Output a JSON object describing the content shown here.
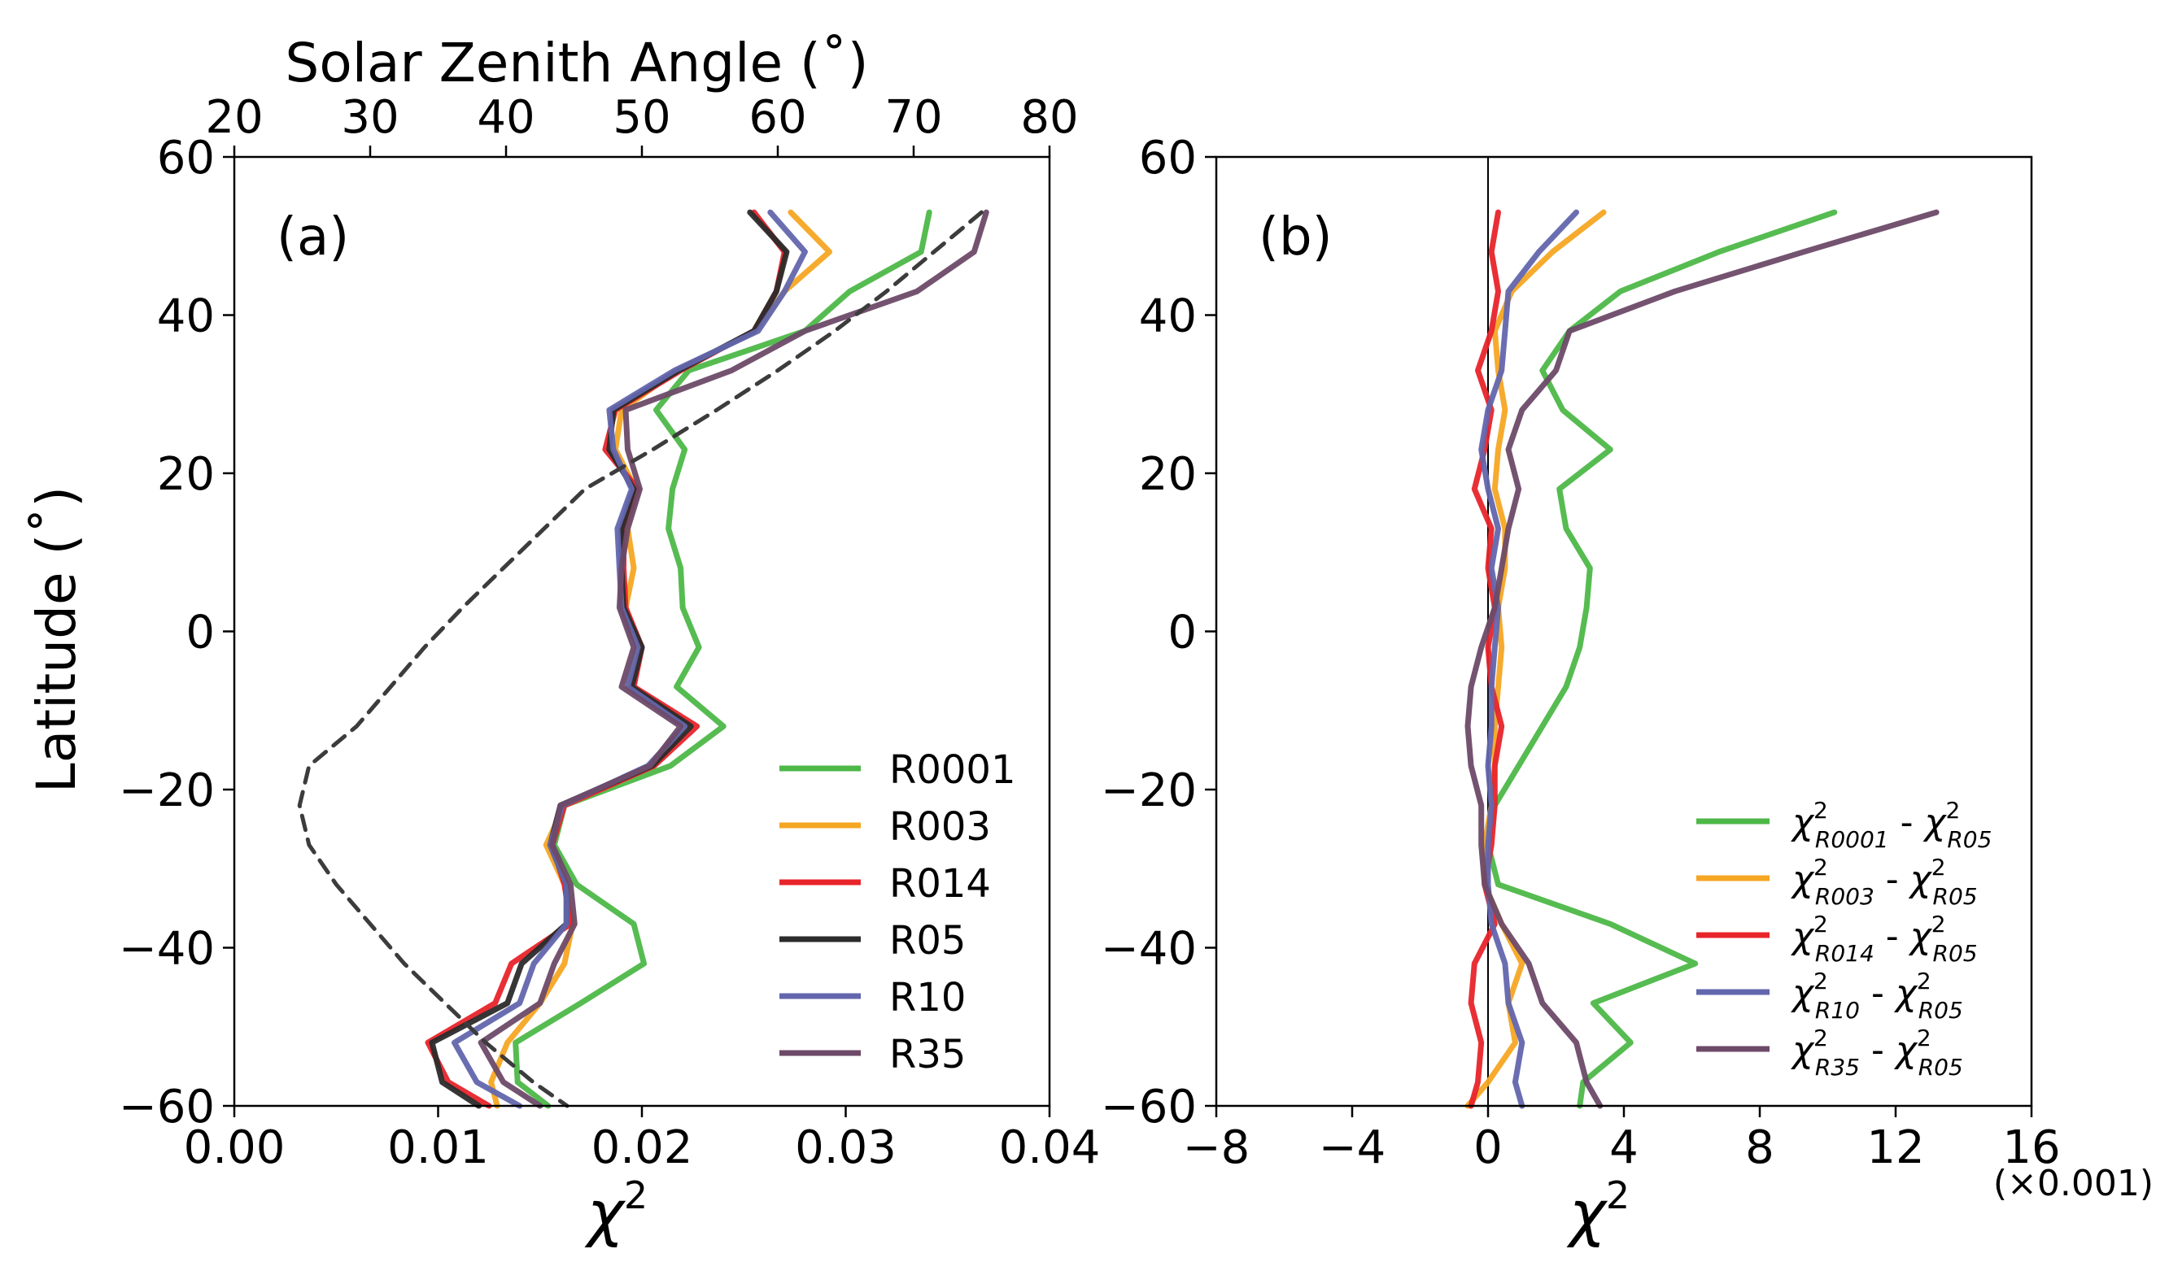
{
  "chart_data": [
    {
      "type": "line",
      "panel_label": "(a)",
      "xlabel": "χ",
      "xlabel_sup": "2",
      "ylabel": "Latitude (˚)",
      "xlim": [
        0.0,
        0.04
      ],
      "ylim": [
        -60,
        60
      ],
      "xticks": [
        0.0,
        0.01,
        0.02,
        0.03,
        0.04
      ],
      "xtick_labels": [
        "0.00",
        "0.01",
        "0.02",
        "0.03",
        "0.04"
      ],
      "yticks": [
        -60,
        -40,
        -20,
        0,
        20,
        40,
        60
      ],
      "ytick_labels": [
        "−60",
        "−40",
        "−20",
        "0",
        "20",
        "40",
        "60"
      ],
      "top_axis": {
        "label": "Solar Zenith Angle (˚)",
        "lim": [
          20,
          80
        ],
        "ticks": [
          20,
          30,
          40,
          50,
          60,
          70,
          80
        ],
        "tick_labels": [
          "20",
          "30",
          "40",
          "50",
          "60",
          "70",
          "80"
        ]
      },
      "legend_position": "lower-right",
      "latitudes": [
        53,
        48,
        43,
        38,
        33,
        28,
        23,
        18,
        13,
        8,
        3,
        -2,
        -7,
        -12,
        -17,
        -22,
        -27,
        -32,
        -37,
        -42,
        -47,
        -52,
        -57,
        -60
      ],
      "series": [
        {
          "name": "R0001",
          "color": "#4db848",
          "x": [
            0.0341,
            0.0337,
            0.0302,
            0.028,
            0.0223,
            0.0207,
            0.0221,
            0.0215,
            0.0213,
            0.0219,
            0.022,
            0.0228,
            0.0217,
            0.024,
            0.0214,
            0.0162,
            0.0157,
            0.0168,
            0.0196,
            0.0201,
            0.017,
            0.0138,
            0.0139,
            0.0154
          ]
        },
        {
          "name": "R003",
          "color": "#f5a623",
          "x": [
            0.0273,
            0.0292,
            0.027,
            0.0256,
            0.0217,
            0.019,
            0.0187,
            0.0197,
            0.0193,
            0.0196,
            0.0192,
            0.0199,
            0.0193,
            0.0222,
            0.0206,
            0.0162,
            0.0153,
            0.0162,
            0.0166,
            0.0162,
            0.015,
            0.0134,
            0.0126,
            0.0129
          ]
        },
        {
          "name": "R014",
          "color": "#e8242b",
          "x": [
            0.0255,
            0.027,
            0.0266,
            0.0255,
            0.0219,
            0.0187,
            0.0182,
            0.0198,
            0.0191,
            0.0191,
            0.0192,
            0.02,
            0.0196,
            0.0227,
            0.0206,
            0.0162,
            0.0156,
            0.0162,
            0.0165,
            0.0136,
            0.0128,
            0.0095,
            0.0105,
            0.0125
          ]
        },
        {
          "name": "R05",
          "color": "#2b2b2b",
          "x": [
            0.0253,
            0.0271,
            0.0266,
            0.0255,
            0.0218,
            0.0186,
            0.0184,
            0.0196,
            0.019,
            0.019,
            0.0191,
            0.02,
            0.0195,
            0.0224,
            0.0205,
            0.016,
            0.0155,
            0.0163,
            0.0163,
            0.0141,
            0.0134,
            0.0097,
            0.0102,
            0.012
          ]
        },
        {
          "name": "R10",
          "color": "#6266ad",
          "x": [
            0.0263,
            0.028,
            0.027,
            0.0257,
            0.0216,
            0.0184,
            0.0186,
            0.0195,
            0.0188,
            0.0189,
            0.019,
            0.0198,
            0.0193,
            0.0221,
            0.0203,
            0.0161,
            0.0155,
            0.0163,
            0.0163,
            0.0147,
            0.014,
            0.0108,
            0.0119,
            0.014
          ]
        },
        {
          "name": "R35",
          "color": "#6d4a68",
          "x": [
            0.0369,
            0.0363,
            0.0335,
            0.028,
            0.0244,
            0.0192,
            0.0193,
            0.0199,
            0.0193,
            0.019,
            0.0189,
            0.0196,
            0.019,
            0.0219,
            0.0204,
            0.016,
            0.0156,
            0.0165,
            0.0167,
            0.0157,
            0.015,
            0.0121,
            0.0132,
            0.015
          ]
        }
      ],
      "sza_curve": {
        "style": "dashed",
        "color": "#3c3c3c",
        "lat": [
          53,
          48,
          43,
          38,
          33,
          28,
          23,
          18,
          13,
          8,
          3,
          -2,
          -7,
          -12,
          -17,
          -22,
          -27,
          -32,
          -37,
          -42,
          -47,
          -52,
          -57,
          -60
        ],
        "sza": [
          75.0,
          71.5,
          68.0,
          64.2,
          60.0,
          55.5,
          50.8,
          45.8,
          42.8,
          39.8,
          36.8,
          34.0,
          31.5,
          29.0,
          25.5,
          24.8,
          25.5,
          27.5,
          30.0,
          32.5,
          35.5,
          38.5,
          42.0,
          44.5
        ]
      }
    },
    {
      "type": "line",
      "panel_label": "(b)",
      "xlabel": "χ",
      "xlabel_sup": "2",
      "xlim": [
        -8,
        16
      ],
      "ylim": [
        -60,
        60
      ],
      "xticks": [
        -8,
        -4,
        0,
        4,
        8,
        12,
        16
      ],
      "xtick_labels": [
        "−8",
        "−4",
        "0",
        "4",
        "8",
        "12",
        "16"
      ],
      "yticks": [
        -60,
        -40,
        -20,
        0,
        20,
        40,
        60
      ],
      "ytick_labels": [
        "−60",
        "−40",
        "−20",
        "0",
        "20",
        "40",
        "60"
      ],
      "x_multiplier": "(×0.001)",
      "zero_line": true,
      "legend_position": "lower-right",
      "latitudes": [
        53,
        48,
        43,
        38,
        33,
        28,
        23,
        18,
        13,
        8,
        3,
        -2,
        -7,
        -12,
        -17,
        -22,
        -27,
        -32,
        -37,
        -42,
        -47,
        -52,
        -57,
        -60
      ],
      "series": [
        {
          "name": "R0001 - R05",
          "label_base": "χ",
          "sub_a": "R0001",
          "sub_b": "R05",
          "color": "#4db848",
          "x": [
            10.2,
            6.8,
            3.9,
            2.4,
            1.6,
            2.2,
            3.6,
            2.1,
            2.3,
            3.0,
            2.9,
            2.7,
            2.3,
            1.6,
            0.9,
            0.2,
            0.0,
            0.3,
            3.6,
            6.1,
            3.1,
            4.2,
            2.8,
            2.7
          ]
        },
        {
          "name": "R003 - R05",
          "label_base": "χ",
          "sub_a": "R003",
          "sub_b": "R05",
          "color": "#f5a623",
          "x": [
            3.4,
            1.9,
            0.7,
            0.2,
            0.3,
            0.5,
            0.3,
            0.2,
            0.5,
            0.5,
            0.3,
            0.4,
            0.3,
            0.2,
            0.2,
            0.1,
            -0.1,
            -0.1,
            0.4,
            1.0,
            0.6,
            0.8,
            0.0,
            -0.6
          ]
        },
        {
          "name": "R014 - R05",
          "label_base": "χ",
          "sub_a": "R014",
          "sub_b": "R05",
          "color": "#e8242b",
          "x": [
            0.3,
            0.1,
            0.3,
            0.1,
            -0.3,
            0.1,
            -0.1,
            -0.4,
            0.1,
            0.0,
            0.2,
            0.0,
            0.1,
            0.4,
            0.2,
            0.2,
            0.1,
            -0.1,
            0.2,
            -0.4,
            -0.5,
            -0.2,
            -0.3,
            -0.5
          ]
        },
        {
          "name": "R10 - R05",
          "label_base": "χ",
          "sub_a": "R10",
          "sub_b": "R05",
          "color": "#6266ad",
          "x": [
            2.6,
            1.5,
            0.6,
            0.5,
            0.4,
            0.0,
            -0.2,
            0.0,
            0.3,
            0.1,
            0.3,
            0.2,
            0.1,
            0.1,
            0.0,
            0.1,
            0.0,
            0.0,
            0.1,
            0.5,
            0.6,
            1.0,
            0.8,
            1.0
          ]
        },
        {
          "name": "R35 - R05",
          "label_base": "χ",
          "sub_a": "R35",
          "sub_b": "R05",
          "color": "#6d4a68",
          "x": [
            13.2,
            9.3,
            5.5,
            2.4,
            2.0,
            1.0,
            0.6,
            0.9,
            0.6,
            0.4,
            0.2,
            -0.2,
            -0.5,
            -0.6,
            -0.5,
            -0.2,
            -0.2,
            -0.1,
            0.4,
            1.2,
            1.6,
            2.6,
            2.9,
            3.3
          ]
        }
      ]
    }
  ]
}
